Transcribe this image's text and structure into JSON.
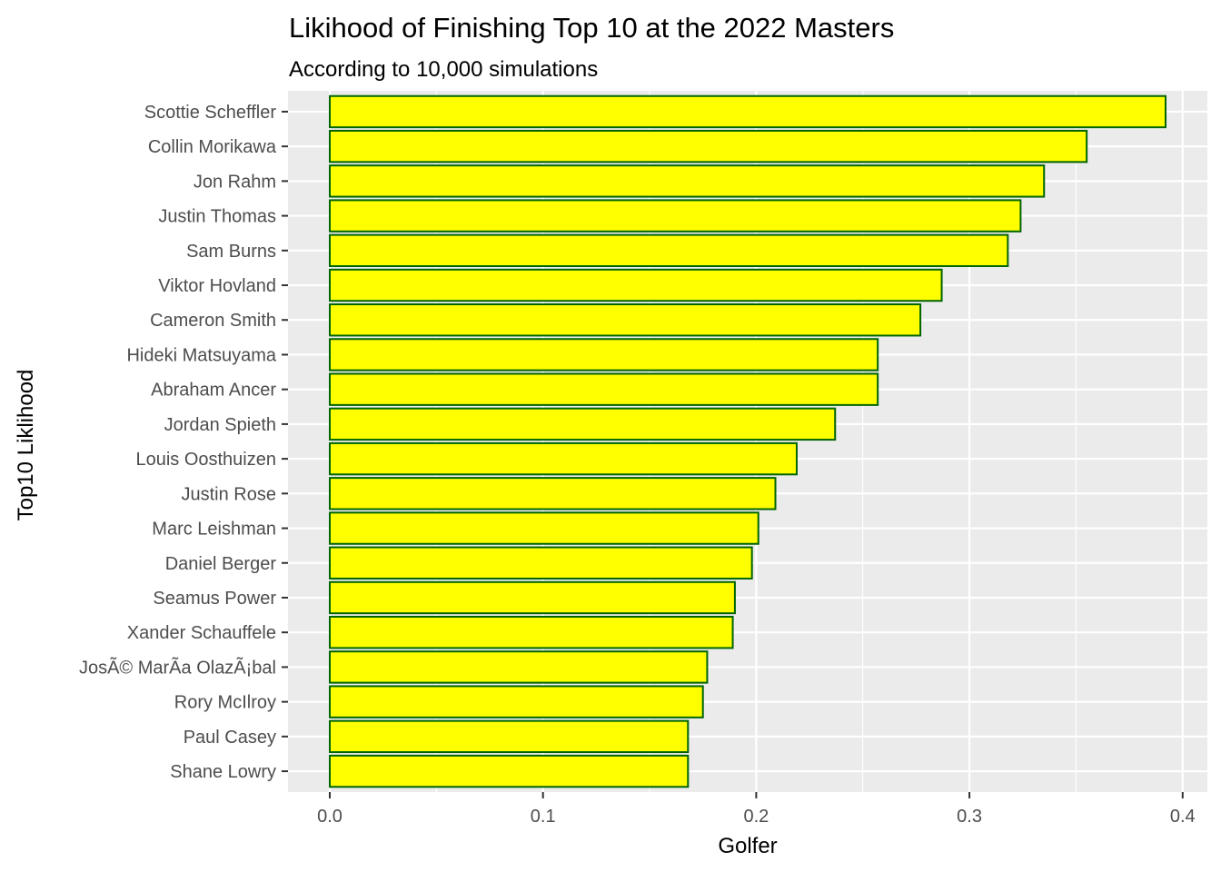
{
  "chart_data": {
    "type": "bar",
    "orientation": "horizontal",
    "title": "Likihood of Finishing Top 10 at the 2022 Masters",
    "subtitle": "According to 10,000 simulations",
    "xlabel": "Golfer",
    "ylabel": "Top10 Liklihood",
    "categories": [
      "Scottie Scheffler",
      "Collin Morikawa",
      "Jon Rahm",
      "Justin Thomas",
      "Sam Burns",
      "Viktor Hovland",
      "Cameron Smith",
      "Hideki Matsuyama",
      "Abraham Ancer",
      "Jordan Spieth",
      "Louis Oosthuizen",
      "Justin Rose",
      "Marc Leishman",
      "Daniel Berger",
      "Seamus Power",
      "Xander Schauffele",
      "JosÃ© MarÃ­a OlazÃ¡bal",
      "Rory McIlroy",
      "Paul Casey",
      "Shane Lowry"
    ],
    "values": [
      0.392,
      0.355,
      0.335,
      0.324,
      0.318,
      0.287,
      0.277,
      0.257,
      0.257,
      0.237,
      0.219,
      0.209,
      0.201,
      0.198,
      0.19,
      0.189,
      0.177,
      0.175,
      0.168,
      0.168
    ],
    "x_ticks": [
      "0.0",
      "0.1",
      "0.2",
      "0.3",
      "0.4"
    ],
    "xlim": [
      -0.0196,
      0.4116
    ],
    "grid": true,
    "colors": {
      "bar_fill": "#ffff00",
      "bar_stroke": "#006400",
      "panel_background": "#ebebeb",
      "grid_major": "#ffffff",
      "tick_text": "#4d4d4d"
    }
  }
}
